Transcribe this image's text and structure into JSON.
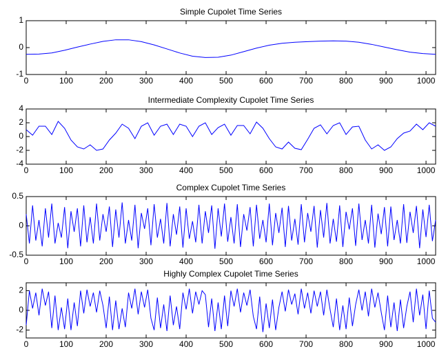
{
  "chart_data": [
    {
      "type": "line",
      "title": "Simple Cupolet Time Series",
      "color": "#0000ff",
      "x": [
        0,
        32,
        64,
        96,
        128,
        160,
        192,
        224,
        256,
        288,
        320,
        352,
        384,
        416,
        448,
        480,
        512,
        544,
        576,
        608,
        640,
        672,
        704,
        736,
        768,
        800,
        832,
        864,
        896,
        928,
        960,
        992,
        1024
      ],
      "values": [
        -0.25,
        -0.24,
        -0.2,
        -0.1,
        0.02,
        0.13,
        0.23,
        0.29,
        0.29,
        0.22,
        0.1,
        -0.05,
        -0.2,
        -0.32,
        -0.37,
        -0.36,
        -0.28,
        -0.15,
        -0.02,
        0.09,
        0.16,
        0.2,
        0.22,
        0.24,
        0.25,
        0.24,
        0.2,
        0.12,
        0.02,
        -0.08,
        -0.17,
        -0.22,
        -0.25
      ],
      "xlim": [
        0,
        1024
      ],
      "xticks": [
        0,
        100,
        200,
        300,
        400,
        500,
        600,
        700,
        800,
        900,
        1000
      ],
      "ylim": [
        -1,
        1
      ],
      "yticks": [
        -1,
        0,
        1
      ]
    },
    {
      "type": "line",
      "title": "Intermediate Complexity Cupolet Time Series",
      "color": "#0000ff",
      "x": [
        0,
        16,
        32,
        48,
        64,
        80,
        96,
        112,
        128,
        144,
        160,
        176,
        192,
        208,
        224,
        240,
        256,
        272,
        288,
        304,
        320,
        336,
        352,
        368,
        384,
        400,
        416,
        432,
        448,
        464,
        480,
        496,
        512,
        528,
        544,
        560,
        576,
        592,
        608,
        624,
        640,
        656,
        672,
        688,
        704,
        720,
        736,
        752,
        768,
        784,
        800,
        816,
        832,
        848,
        864,
        880,
        896,
        912,
        928,
        944,
        960,
        976,
        992,
        1008,
        1024
      ],
      "values": [
        1,
        0.2,
        1.5,
        1.5,
        0.3,
        2.2,
        1.2,
        -0.5,
        -1.5,
        -1.8,
        -1.2,
        -2,
        -1.8,
        -0.5,
        0.5,
        1.8,
        1.2,
        -0.3,
        1.5,
        2,
        0.2,
        1.5,
        1.8,
        0.3,
        1.8,
        1.5,
        0,
        1.5,
        2,
        0.3,
        1.3,
        1.8,
        0.2,
        1.6,
        1.6,
        0.4,
        2.1,
        1.2,
        -0.3,
        -1.5,
        -1.8,
        -0.8,
        -1.7,
        -1.9,
        -0.4,
        1.2,
        1.7,
        0.4,
        1.6,
        2,
        0.3,
        1.4,
        1.5,
        -0.5,
        -1.8,
        -1.2,
        -2,
        -1.5,
        -0.3,
        0.5,
        0.8,
        1.8,
        1,
        2,
        1.5
      ],
      "xlim": [
        0,
        1024
      ],
      "xticks": [
        0,
        100,
        200,
        300,
        400,
        500,
        600,
        700,
        800,
        900,
        1000
      ],
      "ylim": [
        -4,
        4
      ],
      "yticks": [
        -4,
        -2,
        0,
        2,
        4
      ]
    },
    {
      "type": "line",
      "title": "Complex Cupolet Time Series",
      "color": "#0000ff",
      "x": [
        0,
        8,
        16,
        24,
        32,
        40,
        48,
        56,
        64,
        72,
        80,
        88,
        96,
        104,
        112,
        120,
        128,
        136,
        144,
        152,
        160,
        168,
        176,
        184,
        192,
        200,
        208,
        216,
        224,
        232,
        240,
        248,
        256,
        264,
        272,
        280,
        288,
        296,
        304,
        312,
        320,
        328,
        336,
        344,
        352,
        360,
        368,
        376,
        384,
        392,
        400,
        408,
        416,
        424,
        432,
        440,
        448,
        456,
        464,
        472,
        480,
        488,
        496,
        504,
        512,
        520,
        528,
        536,
        544,
        552,
        560,
        568,
        576,
        584,
        592,
        600,
        608,
        616,
        624,
        632,
        640,
        648,
        656,
        664,
        672,
        680,
        688,
        696,
        704,
        712,
        720,
        728,
        736,
        744,
        752,
        760,
        768,
        776,
        784,
        792,
        800,
        808,
        816,
        824,
        832,
        840,
        848,
        856,
        864,
        872,
        880,
        888,
        896,
        904,
        912,
        920,
        928,
        936,
        944,
        952,
        960,
        968,
        976,
        984,
        992,
        1000,
        1008,
        1016,
        1024
      ],
      "values": [
        0.2,
        -0.3,
        0.35,
        -0.25,
        0.1,
        -0.35,
        0.3,
        -0.2,
        0.38,
        -0.3,
        0.05,
        -0.2,
        0.32,
        -0.38,
        0.25,
        -0.1,
        0.3,
        -0.35,
        0.35,
        -0.28,
        0.15,
        -0.3,
        0.38,
        -0.25,
        0.2,
        -0.1,
        0.33,
        -0.36,
        0.28,
        -0.2,
        0.4,
        -0.3,
        0.1,
        -0.25,
        0.36,
        -0.38,
        0.22,
        -0.05,
        0.3,
        -0.33,
        0.37,
        -0.2,
        0.12,
        -0.3,
        0.39,
        -0.35,
        0.2,
        -0.15,
        0.33,
        -0.37,
        0.3,
        -0.22,
        0.08,
        -0.28,
        0.36,
        -0.3,
        0.25,
        -0.12,
        0.35,
        -0.39,
        0.3,
        -0.18,
        0.38,
        -0.27,
        0.15,
        -0.3,
        0.37,
        -0.36,
        0.2,
        -0.08,
        0.32,
        -0.35,
        0.36,
        -0.22,
        0.1,
        -0.28,
        0.38,
        -0.33,
        0.22,
        -0.12,
        0.31,
        -0.36,
        0.34,
        -0.25,
        0.12,
        -0.32,
        0.37,
        -0.28,
        0.22,
        -0.1,
        0.34,
        -0.37,
        0.27,
        -0.2,
        0.39,
        -0.3,
        0.12,
        -0.27,
        0.35,
        -0.36,
        0.24,
        -0.06,
        0.3,
        -0.34,
        0.38,
        -0.24,
        0.1,
        -0.3,
        0.36,
        -0.37,
        0.21,
        -0.14,
        0.32,
        -0.35,
        0.33,
        -0.24,
        0.1,
        -0.3,
        0.37,
        -0.29,
        0.24,
        -0.12,
        0.34,
        -0.38,
        0.28,
        -0.19,
        0.36,
        -0.26,
        0.1
      ],
      "xlim": [
        0,
        1024
      ],
      "xticks": [
        0,
        100,
        200,
        300,
        400,
        500,
        600,
        700,
        800,
        900,
        1000
      ],
      "ylim": [
        -0.5,
        0.5
      ],
      "yticks": [
        -0.5,
        0,
        0.5
      ]
    },
    {
      "type": "line",
      "title": "Highly Complex Cupolet Time Series",
      "color": "#0000ff",
      "x": [
        0,
        8,
        16,
        24,
        32,
        40,
        48,
        56,
        64,
        72,
        80,
        88,
        96,
        104,
        112,
        120,
        128,
        136,
        144,
        152,
        160,
        168,
        176,
        184,
        192,
        200,
        208,
        216,
        224,
        232,
        240,
        248,
        256,
        264,
        272,
        280,
        288,
        296,
        304,
        312,
        320,
        328,
        336,
        344,
        352,
        360,
        368,
        376,
        384,
        392,
        400,
        408,
        416,
        424,
        432,
        440,
        448,
        456,
        464,
        472,
        480,
        488,
        496,
        504,
        512,
        520,
        528,
        536,
        544,
        552,
        560,
        568,
        576,
        584,
        592,
        600,
        608,
        616,
        624,
        632,
        640,
        648,
        656,
        664,
        672,
        680,
        688,
        696,
        704,
        712,
        720,
        728,
        736,
        744,
        752,
        760,
        768,
        776,
        784,
        792,
        800,
        808,
        816,
        824,
        832,
        840,
        848,
        856,
        864,
        872,
        880,
        888,
        896,
        904,
        912,
        920,
        928,
        936,
        944,
        952,
        960,
        968,
        976,
        984,
        992,
        1000,
        1008,
        1016,
        1024
      ],
      "values": [
        -1.5,
        2,
        0.2,
        1.8,
        -0.5,
        2.2,
        0.5,
        1.9,
        -1.8,
        1.5,
        -2,
        0.3,
        -1.9,
        1.2,
        -2,
        0.8,
        -1.6,
        2,
        -0.3,
        2.1,
        0.4,
        1.8,
        -0.2,
        2,
        0.5,
        -1.8,
        1.4,
        -2,
        1,
        -1.9,
        0.2,
        -1.7,
        1.8,
        0.2,
        2.2,
        -0.4,
        1.9,
        0.3,
        2.1,
        -0.8,
        -2,
        1.3,
        -1.8,
        0.6,
        -2.1,
        1.5,
        -1.5,
        0.4,
        -1.9,
        1.8,
        0.1,
        2.2,
        -0.3,
        1.9,
        0.6,
        2,
        1.6,
        -1.7,
        1.2,
        -2.1,
        0.8,
        -1.9,
        1.5,
        -1.6,
        2,
        0.4,
        2.2,
        -0.2,
        1.8,
        0.5,
        2.1,
        -0.6,
        -1.9,
        1.4,
        -2.2,
        0.7,
        -1.8,
        1.1,
        -2,
        0.3,
        1.9,
        -0.1,
        2.1,
        0.6,
        1.7,
        -0.4,
        2.2,
        0.2,
        1.8,
        -0.3,
        2,
        0.4,
        1.9,
        -0.5,
        2.1,
        0.1,
        -1.7,
        1.2,
        -2,
        0.5,
        -1.9,
        1.3,
        -1.6,
        0.6,
        2.1,
        0,
        1.9,
        -0.6,
        2.2,
        0.3,
        1.8,
        -0.2,
        -2,
        1.5,
        -1.7,
        0.8,
        -2.1,
        1.1,
        -1.8,
        0.4,
        1.9,
        -1.2,
        2.2,
        -0.5,
        1.6,
        -1.9,
        2,
        -0.8,
        -1.2
      ],
      "xlim": [
        0,
        1024
      ],
      "xticks": [
        0,
        100,
        200,
        300,
        400,
        500,
        600,
        700,
        800,
        900,
        1000
      ],
      "ylim": [
        -2.8,
        2.8
      ],
      "yticks": [
        -2,
        0,
        2
      ]
    }
  ]
}
